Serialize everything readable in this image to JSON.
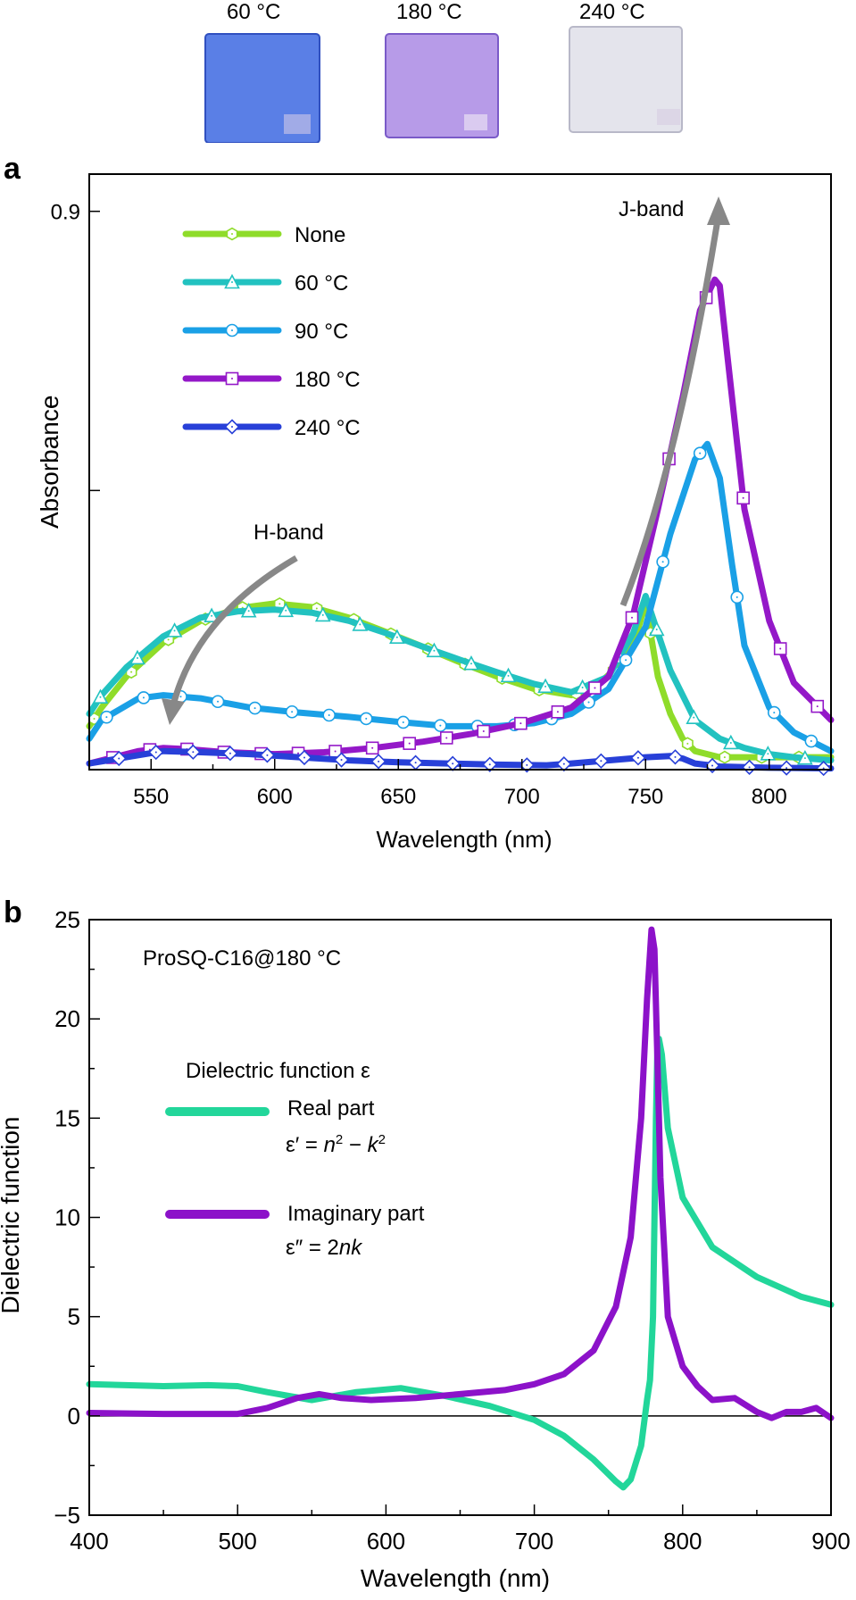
{
  "samples": {
    "items": [
      {
        "label": "60 °C",
        "color": "#5a7fe6"
      },
      {
        "label": "180 °C",
        "color": "#b79be8"
      },
      {
        "label": "240 °C",
        "color": "#e4e4ec"
      }
    ]
  },
  "chart_data": [
    {
      "panel": "a",
      "type": "line",
      "xlabel": "Wavelength (nm)",
      "ylabel": "Absorbance",
      "xlim": [
        525,
        825
      ],
      "ylim": [
        0,
        0.96
      ],
      "xticks": [
        550,
        600,
        650,
        700,
        750,
        800
      ],
      "yticks": [
        0.9
      ],
      "yminor": [
        0.45
      ],
      "annotations": [
        {
          "text": "H-band",
          "x": 607,
          "y": 0.335
        },
        {
          "text": "J-band",
          "x": 766,
          "y": 0.9
        }
      ],
      "series": [
        {
          "name": "None",
          "color": "#8fdc2a",
          "marker": "hexagon",
          "x": [
            525,
            530,
            540,
            555,
            570,
            585,
            600,
            615,
            630,
            645,
            660,
            675,
            690,
            705,
            720,
            730,
            740,
            745,
            748,
            750,
            752,
            755,
            760,
            765,
            770,
            780,
            790,
            800,
            810,
            825
          ],
          "y": [
            0.07,
            0.1,
            0.15,
            0.205,
            0.24,
            0.26,
            0.268,
            0.262,
            0.245,
            0.222,
            0.198,
            0.173,
            0.15,
            0.13,
            0.12,
            0.135,
            0.17,
            0.2,
            0.24,
            0.275,
            0.22,
            0.15,
            0.09,
            0.05,
            0.03,
            0.02,
            0.02,
            0.02,
            0.02,
            0.02
          ]
        },
        {
          "name": "60 °C",
          "color": "#22c2c0",
          "marker": "triangle",
          "x": [
            525,
            530,
            540,
            555,
            570,
            585,
            600,
            615,
            630,
            645,
            660,
            675,
            690,
            705,
            720,
            735,
            745,
            750,
            755,
            760,
            770,
            780,
            790,
            800,
            810,
            825
          ],
          "y": [
            0.09,
            0.12,
            0.165,
            0.215,
            0.245,
            0.255,
            0.258,
            0.253,
            0.24,
            0.22,
            0.198,
            0.177,
            0.157,
            0.138,
            0.125,
            0.15,
            0.22,
            0.28,
            0.22,
            0.16,
            0.08,
            0.05,
            0.035,
            0.025,
            0.02,
            0.015
          ]
        },
        {
          "name": "90 °C",
          "color": "#1aa0e6",
          "marker": "circle",
          "x": [
            525,
            530,
            545,
            555,
            570,
            590,
            610,
            630,
            650,
            670,
            690,
            705,
            720,
            735,
            750,
            760,
            770,
            775,
            780,
            785,
            790,
            800,
            810,
            825
          ],
          "y": [
            0.05,
            0.08,
            0.115,
            0.12,
            0.115,
            0.1,
            0.092,
            0.085,
            0.077,
            0.07,
            0.07,
            0.075,
            0.09,
            0.13,
            0.23,
            0.38,
            0.5,
            0.525,
            0.47,
            0.33,
            0.2,
            0.1,
            0.06,
            0.03
          ]
        },
        {
          "name": "180 °C",
          "color": "#9418c8",
          "marker": "square",
          "x": [
            525,
            535,
            545,
            555,
            565,
            580,
            600,
            620,
            640,
            660,
            680,
            700,
            720,
            735,
            745,
            755,
            765,
            772,
            778,
            780,
            783,
            790,
            800,
            810,
            825
          ],
          "y": [
            0.01,
            0.02,
            0.03,
            0.035,
            0.033,
            0.028,
            0.025,
            0.028,
            0.035,
            0.045,
            0.058,
            0.075,
            0.1,
            0.15,
            0.25,
            0.42,
            0.6,
            0.74,
            0.79,
            0.78,
            0.67,
            0.42,
            0.24,
            0.14,
            0.08
          ]
        },
        {
          "name": "240 °C",
          "color": "#2840d8",
          "marker": "diamond",
          "x": [
            525,
            540,
            555,
            570,
            590,
            610,
            630,
            650,
            670,
            690,
            710,
            720,
            735,
            750,
            760,
            765,
            770,
            780,
            800,
            825
          ],
          "y": [
            0.01,
            0.02,
            0.03,
            0.028,
            0.025,
            0.02,
            0.015,
            0.012,
            0.01,
            0.008,
            0.007,
            0.01,
            0.015,
            0.02,
            0.022,
            0.018,
            0.01,
            0.005,
            0.003,
            0.002
          ]
        }
      ]
    },
    {
      "panel": "b",
      "type": "line",
      "xlabel": "Wavelength (nm)",
      "ylabel": "Dielectric function",
      "xlim": [
        400,
        900
      ],
      "ylim": [
        -5,
        25
      ],
      "xticks": [
        400,
        500,
        600,
        700,
        800,
        900
      ],
      "yticks": [
        -5,
        0,
        5,
        10,
        15,
        20,
        25
      ],
      "sample_label": "ProSQ-C16@180 °C",
      "legend_title": "Dielectric function ε",
      "series": [
        {
          "name": "Real part",
          "formula": "ε′ = n2 − k2",
          "color": "#22d69a",
          "x": [
            400,
            450,
            480,
            500,
            520,
            550,
            580,
            610,
            640,
            670,
            700,
            720,
            740,
            755,
            760,
            765,
            772,
            776,
            778,
            780,
            782,
            783,
            784,
            786,
            790,
            800,
            820,
            850,
            880,
            900
          ],
          "y": [
            1.6,
            1.5,
            1.55,
            1.5,
            1.2,
            0.8,
            1.2,
            1.4,
            1.0,
            0.5,
            -0.2,
            -1.0,
            -2.2,
            -3.3,
            -3.6,
            -3.2,
            -1.5,
            0.8,
            1.8,
            5,
            15,
            18.5,
            19,
            18.2,
            14.5,
            11,
            8.5,
            7,
            6,
            5.6
          ]
        },
        {
          "name": "Imaginary part",
          "formula": "ε″ = 2nk",
          "color": "#8c12c9",
          "x": [
            400,
            450,
            500,
            520,
            540,
            555,
            570,
            590,
            620,
            650,
            680,
            700,
            720,
            740,
            755,
            765,
            772,
            776,
            779,
            781,
            783,
            785,
            790,
            800,
            810,
            820,
            835,
            850,
            860,
            870,
            880,
            890,
            900
          ],
          "y": [
            0.15,
            0.1,
            0.1,
            0.4,
            0.9,
            1.1,
            0.9,
            0.8,
            0.9,
            1.1,
            1.3,
            1.6,
            2.1,
            3.3,
            5.5,
            9,
            15,
            21,
            24.5,
            23.5,
            18,
            12,
            5,
            2.5,
            1.5,
            0.8,
            0.9,
            0.2,
            -0.1,
            0.2,
            0.2,
            0.4,
            -0.1
          ]
        }
      ]
    }
  ],
  "panel_a": {
    "label": "a",
    "ytick_label": "0.9"
  },
  "panel_b": {
    "label": "b"
  }
}
